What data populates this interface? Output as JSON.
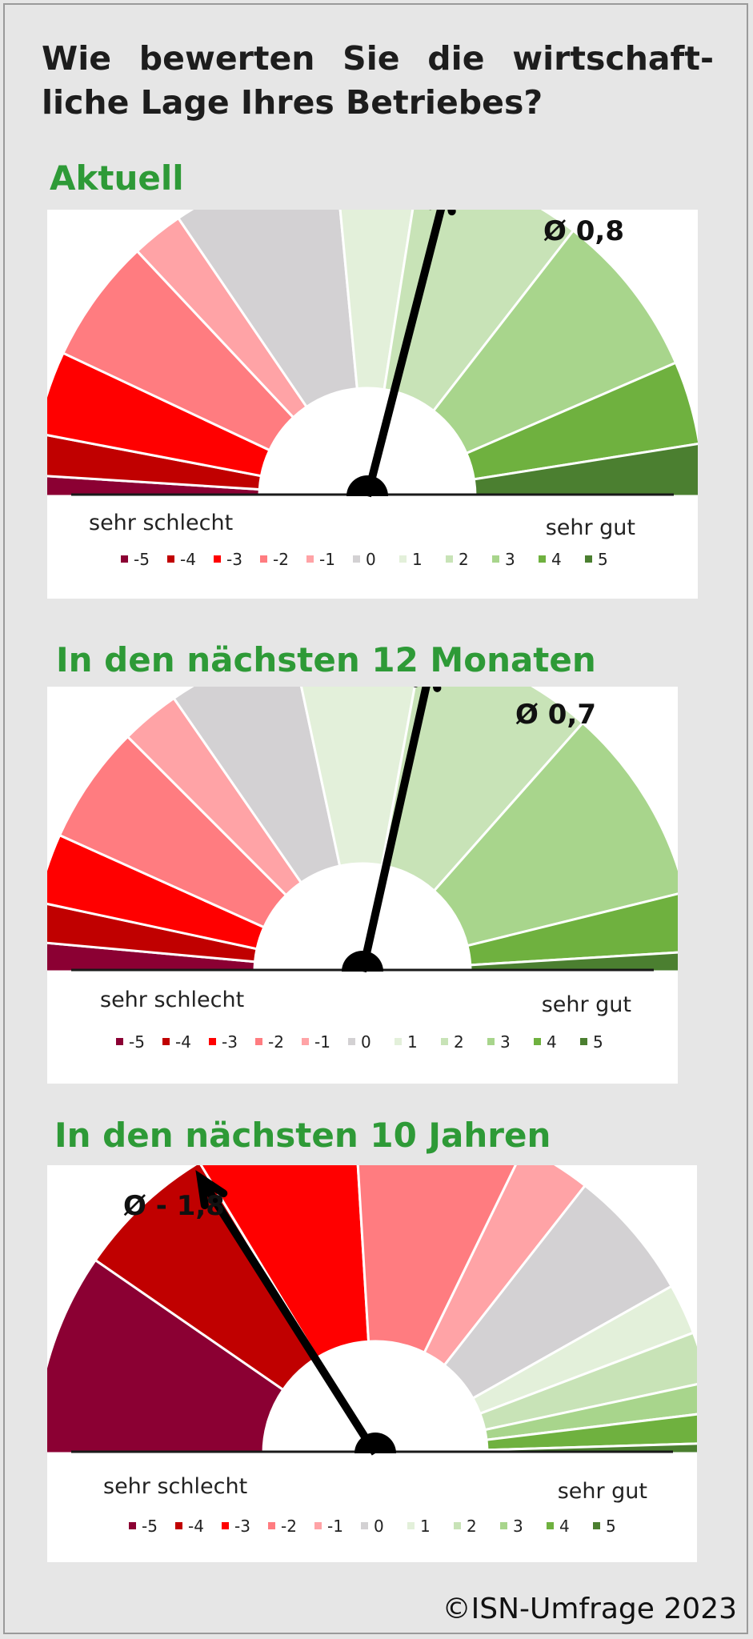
{
  "title": "Wie bewerten Sie die wirtschaft- liche Lage Ihres Betriebes?",
  "footer": "©ISN-Umfrage 2023",
  "colors": {
    "-5": "#8b0033",
    "-4": "#c00000",
    "-3": "#ff0000",
    "-2": "#ff7c80",
    "-1": "#ffa3a6",
    "0": "#d3d1d3",
    "1": "#e3f0da",
    "2": "#c8e3b7",
    "3": "#a8d58c",
    "4": "#6fb13f",
    "5": "#4b7f30"
  },
  "chart_data": [
    {
      "type": "gauge",
      "title": "Aktuell",
      "mean_label": "Ø 0,8",
      "mean": 0.8,
      "scale_range": [
        -5,
        5
      ],
      "left_label": "sehr schlecht",
      "right_label": "sehr gut",
      "legend": [
        "-5",
        "-4",
        "-3",
        "-2",
        "-1",
        "0",
        "1",
        "2",
        "3",
        "4",
        "5"
      ],
      "categories": [
        -5,
        -4,
        -3,
        -2,
        -1,
        0,
        1,
        2,
        3,
        4,
        5
      ],
      "values": [
        2,
        4,
        8,
        12,
        5,
        16,
        8,
        16,
        16,
        8,
        5
      ]
    },
    {
      "type": "gauge",
      "title": "In den nächsten 12 Monaten",
      "mean_label": "Ø 0,7",
      "mean": 0.7,
      "scale_range": [
        -5,
        5
      ],
      "left_label": "sehr schlecht",
      "right_label": "sehr gut",
      "legend": [
        "-5",
        "-4",
        "-3",
        "-2",
        "-1",
        "0",
        "1",
        "2",
        "3",
        "4",
        "5"
      ],
      "categories": [
        -5,
        -4,
        -3,
        -2,
        -1,
        0,
        1,
        2,
        3,
        4,
        5
      ],
      "values": [
        3,
        4,
        7,
        12,
        6,
        13,
        13,
        18,
        20,
        6,
        2
      ]
    },
    {
      "type": "gauge",
      "title": "In den nächsten 10 Jahren",
      "mean_label": "Ø - 1,8",
      "mean": -1.8,
      "scale_range": [
        -5,
        5
      ],
      "left_label": "sehr schlecht",
      "right_label": "sehr gut",
      "legend": [
        "-5",
        "-4",
        "-3",
        "-2",
        "-1",
        "0",
        "1",
        "2",
        "3",
        "4",
        "5"
      ],
      "categories": [
        -5,
        -4,
        -3,
        -2,
        -1,
        0,
        1,
        2,
        3,
        4,
        5
      ],
      "values": [
        20,
        14,
        16,
        17,
        7,
        13,
        5,
        5,
        3,
        3,
        1
      ]
    }
  ]
}
